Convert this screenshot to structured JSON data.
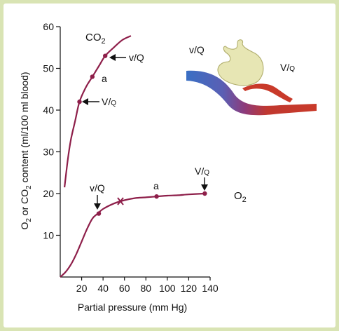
{
  "chart_data": {
    "type": "line",
    "xlabel": "Partial pressure (mm Hg)",
    "ylabel": "O2 or CO2 content (ml/100 ml blood)",
    "xlim": [
      0,
      140
    ],
    "ylim": [
      0,
      60
    ],
    "x_ticks": [
      20,
      40,
      60,
      80,
      100,
      120,
      140
    ],
    "y_ticks": [
      10,
      20,
      30,
      40,
      50,
      60
    ],
    "grid": false,
    "series": [
      {
        "name": "CO2",
        "color": "#8e1f4a",
        "x": [
          4,
          7,
          10,
          14,
          18,
          24,
          30,
          36,
          42,
          50,
          58,
          66
        ],
        "y": [
          21.5,
          28,
          33,
          37.5,
          42,
          45.5,
          48,
          50.5,
          53,
          55,
          56.8,
          57.8
        ],
        "points": [
          {
            "x": 18,
            "y": 42,
            "label": "V/Q"
          },
          {
            "x": 30,
            "y": 48,
            "label": "a"
          },
          {
            "x": 42,
            "y": 53,
            "label": "v/Q"
          }
        ]
      },
      {
        "name": "O2",
        "color": "#8e1f4a",
        "x": [
          0,
          5,
          10,
          15,
          20,
          25,
          30,
          35,
          40,
          50,
          60,
          70,
          80,
          90,
          100,
          110,
          120,
          135
        ],
        "y": [
          0,
          1.2,
          3,
          5.5,
          8.5,
          11.5,
          14,
          15.2,
          16.3,
          17.6,
          18.4,
          18.9,
          19.1,
          19.3,
          19.5,
          19.6,
          19.8,
          20
        ],
        "points": [
          {
            "x": 36,
            "y": 15.2,
            "label": "v/Q"
          },
          {
            "x": 90,
            "y": 19.3,
            "label": "a"
          },
          {
            "x": 135,
            "y": 20,
            "label": "V/Q"
          }
        ],
        "marker": {
          "x": 56,
          "y": 18.2,
          "symbol": "x"
        }
      }
    ],
    "annotations": {
      "co2_label": "CO",
      "co2_sub": "2",
      "o2_label": "O",
      "o2_sub": "2",
      "diagram_vq_small": "v/Q",
      "diagram_vq_large": "V/Q"
    }
  }
}
